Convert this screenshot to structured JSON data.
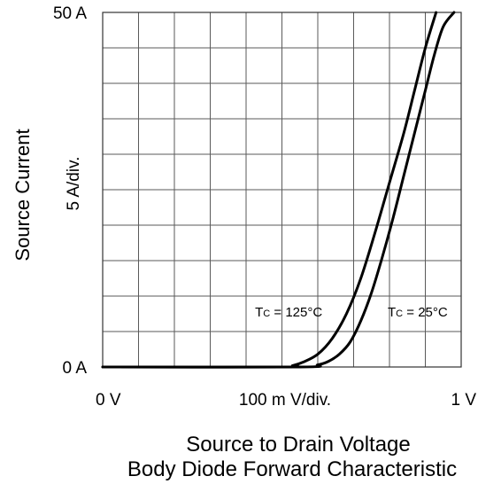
{
  "chart_data": {
    "type": "line",
    "title": "",
    "subtitle": "Body Diode Forward Characteristic",
    "xlabel": "Source to Drain Voltage",
    "ylabel": "Source Current",
    "x_unit": "V",
    "y_unit": "A",
    "x_scale_label": "100 m V/div.",
    "y_scale_label": "5  A/div.",
    "xlim": [
      0,
      1
    ],
    "ylim": [
      0,
      50
    ],
    "x_ticks": [
      {
        "value": 0,
        "label": "0  V"
      },
      {
        "value": 1,
        "label": "1  V"
      }
    ],
    "y_ticks": [
      {
        "value": 0,
        "label": "0  A"
      },
      {
        "value": 50,
        "label": "50  A"
      }
    ],
    "grid": true,
    "x_divisions": 10,
    "y_divisions": 10,
    "series": [
      {
        "name": "TC = 125°C",
        "label_main": "T",
        "label_sub": "C",
        "label_rest": " = 125°C",
        "label_at": [
          0.425,
          7.1
        ],
        "x": [
          0.0,
          0.5,
          0.53,
          0.56,
          0.6,
          0.64,
          0.68,
          0.72,
          0.76,
          0.8,
          0.84,
          0.87,
          0.9,
          0.93
        ],
        "y": [
          0.0,
          0.0,
          0.2,
          0.7,
          1.8,
          4.0,
          7.5,
          12.5,
          19.0,
          26.0,
          33.0,
          39.0,
          45.0,
          50.0
        ]
      },
      {
        "name": "TC = 25°C",
        "label_main": "T",
        "label_sub": "C",
        "label_rest": " = 25°C",
        "label_at": [
          0.795,
          7.1
        ],
        "x": [
          0.0,
          0.55,
          0.6,
          0.63,
          0.66,
          0.69,
          0.72,
          0.75,
          0.78,
          0.81,
          0.84,
          0.87,
          0.9,
          0.925,
          0.95,
          0.98
        ],
        "y": [
          0.0,
          0.0,
          0.3,
          0.8,
          1.8,
          3.5,
          6.5,
          10.5,
          15.5,
          21.0,
          27.0,
          33.0,
          39.0,
          44.0,
          48.0,
          50.0
        ]
      }
    ]
  }
}
